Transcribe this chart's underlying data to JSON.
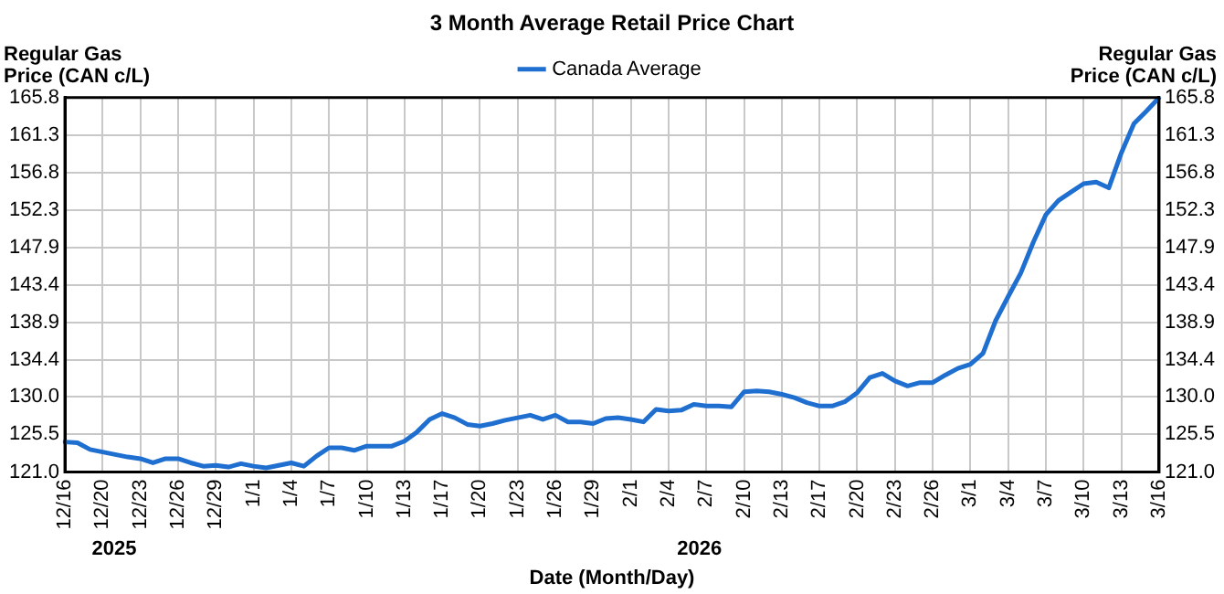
{
  "chart_data": {
    "type": "line",
    "title": "3 Month Average Retail Price Chart",
    "xlabel": "Date (Month/Day)",
    "ylabel": "Regular Gas\nPrice (CAN c/L)",
    "y2label": "Regular Gas\nPrice (CAN c/L)",
    "categories": [
      "12/16",
      null,
      null,
      "12/20",
      null,
      null,
      "12/23",
      null,
      null,
      "12/26",
      null,
      null,
      "12/29",
      null,
      null,
      "1/1",
      null,
      null,
      "1/4",
      null,
      null,
      "1/7",
      null,
      null,
      "1/10",
      null,
      null,
      "1/13",
      null,
      null,
      "1/17",
      null,
      null,
      "1/20",
      null,
      null,
      "1/23",
      null,
      null,
      "1/26",
      null,
      null,
      "1/29",
      null,
      null,
      "2/1",
      null,
      null,
      "2/4",
      null,
      null,
      "2/7",
      null,
      null,
      "2/10",
      null,
      null,
      "2/13",
      null,
      null,
      "2/17",
      null,
      null,
      "2/20",
      null,
      null,
      "2/23",
      null,
      null,
      "2/26",
      null,
      null,
      "3/1",
      null,
      null,
      "3/4",
      null,
      null,
      "3/7",
      null,
      null,
      "3/10",
      null,
      null,
      "3/13",
      null,
      null,
      "3/16"
    ],
    "series": [
      {
        "name": "Canada Average",
        "color": "#1f6fd0",
        "values": [
          124.6,
          124.5,
          123.7,
          123.4,
          123.1,
          122.8,
          122.6,
          122.1,
          122.6,
          122.6,
          122.1,
          121.7,
          121.8,
          121.6,
          122.0,
          121.7,
          121.5,
          121.8,
          122.1,
          121.7,
          122.9,
          123.9,
          123.9,
          123.6,
          124.1,
          124.1,
          124.1,
          124.7,
          125.8,
          127.3,
          128.0,
          127.5,
          126.7,
          126.5,
          126.8,
          127.2,
          127.5,
          127.8,
          127.3,
          127.8,
          127.0,
          127.0,
          126.8,
          127.4,
          127.5,
          127.3,
          127.0,
          128.5,
          128.3,
          128.4,
          129.1,
          128.9,
          128.9,
          128.8,
          130.6,
          130.7,
          130.6,
          130.3,
          129.9,
          129.3,
          128.9,
          128.9,
          129.4,
          130.5,
          132.3,
          132.8,
          131.9,
          131.3,
          131.7,
          131.7,
          132.6,
          133.4,
          133.9,
          135.2,
          139.1,
          142.0,
          144.8,
          148.5,
          151.8,
          153.5,
          154.5,
          155.5,
          155.7,
          155.0,
          159.2,
          162.7,
          164.2,
          165.8
        ]
      }
    ],
    "ylim": [
      121.0,
      165.8
    ],
    "yticks": [
      {
        "value": 121.0,
        "label": "121.0"
      },
      125.5,
      {
        "value": 130.0,
        "label": "130.0"
      },
      134.4,
      138.9,
      143.4,
      147.9,
      152.3,
      156.8,
      161.3,
      165.8
    ],
    "y2lim": [
      121.0,
      165.8
    ],
    "y2ticks": [
      {
        "value": 121.0,
        "label": "121.0"
      },
      125.5,
      {
        "value": 130.0,
        "label": "130.0"
      },
      134.4,
      138.9,
      143.4,
      147.9,
      152.3,
      156.8,
      161.3,
      165.8
    ],
    "annotations": [
      "2025",
      "2026"
    ],
    "grid": true,
    "legend": "top",
    "marker": "none",
    "line_style": "solid"
  }
}
